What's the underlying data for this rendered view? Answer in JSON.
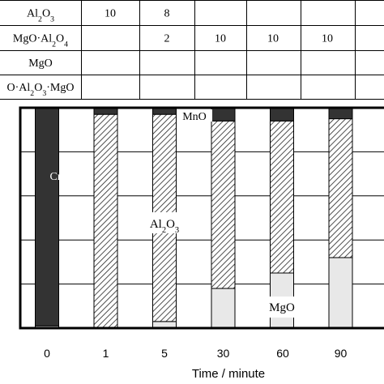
{
  "chart_data": {
    "type": "bar",
    "stacked": true,
    "x_categories": [
      "0",
      "1",
      "5",
      "30",
      "60",
      "90",
      ""
    ],
    "xlabel": "Time / minute",
    "ylim": [
      0,
      100
    ],
    "grid": true,
    "series": [
      {
        "name": "MgO",
        "fill": "light-gray",
        "color": "#e6e6e6",
        "values": [
          1,
          0,
          3,
          18,
          25,
          32,
          null
        ]
      },
      {
        "name": "Al2O3",
        "fill": "diagonal-hatch",
        "color": "#ffffff",
        "values": [
          0,
          97,
          94,
          76,
          69,
          63,
          null
        ]
      },
      {
        "name": "CrOx",
        "fill": "dark",
        "color": "#333333",
        "values": [
          99,
          3,
          3,
          6,
          6,
          5,
          null
        ]
      }
    ],
    "annotations": [
      {
        "text": "CrO",
        "sub": "x",
        "near": "bar 0"
      },
      {
        "text": "Al",
        "sub2": "2",
        "mid": "O",
        "sub3": "3",
        "near": "bar 5"
      },
      {
        "text": "MnO",
        "near": "bar 5 top"
      },
      {
        "text": "MgO",
        "near": "bar 60 bottom"
      }
    ]
  },
  "table": {
    "rows": [
      {
        "label_parts": [
          "Al",
          "2",
          "O",
          "3",
          ""
        ],
        "cells": [
          "10",
          "8",
          "",
          "",
          "",
          ""
        ]
      },
      {
        "label_parts": [
          "MgO·Al",
          "2",
          "O",
          "4",
          ""
        ],
        "cells": [
          "",
          "2",
          "10",
          "10",
          "10",
          ""
        ]
      },
      {
        "label_parts": [
          "MgO",
          "",
          "",
          "",
          ""
        ],
        "cells": [
          "",
          "",
          "",
          "",
          "",
          ""
        ]
      },
      {
        "label_parts": [
          "O·Al",
          "2",
          "O",
          "3",
          "·MgO"
        ],
        "cells": [
          "",
          "",
          "",
          "",
          "",
          ""
        ]
      }
    ]
  }
}
